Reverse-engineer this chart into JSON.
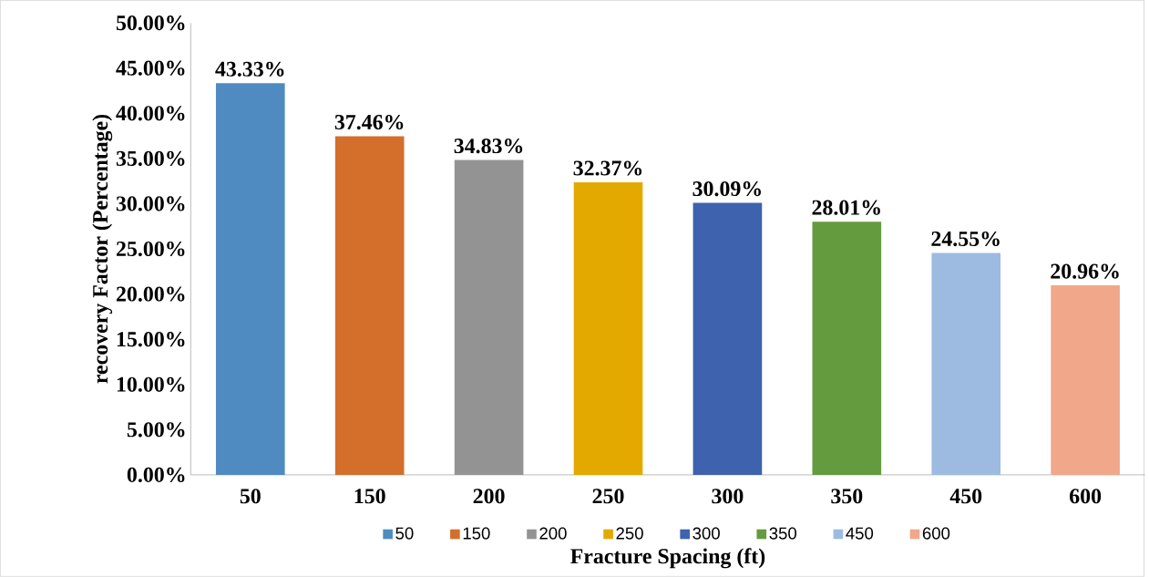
{
  "chart_data": {
    "type": "bar",
    "xlabel": "Fracture Spacing (ft)",
    "ylabel": "recovery Factor (Percentage)",
    "categories": [
      "50",
      "150",
      "200",
      "250",
      "300",
      "350",
      "450",
      "600"
    ],
    "series": [
      {
        "name": "50",
        "color": "#4f8bc0",
        "values": [
          43.33,
          null,
          null,
          null,
          null,
          null,
          null,
          null
        ],
        "value_labels": [
          "43.33%",
          null,
          null,
          null,
          null,
          null,
          null,
          null
        ]
      },
      {
        "name": "150",
        "color": "#d36f2b",
        "values": [
          null,
          37.46,
          null,
          null,
          null,
          null,
          null,
          null
        ],
        "value_labels": [
          null,
          "37.46%",
          null,
          null,
          null,
          null,
          null,
          null
        ]
      },
      {
        "name": "200",
        "color": "#939393",
        "values": [
          null,
          null,
          34.83,
          null,
          null,
          null,
          null,
          null
        ],
        "value_labels": [
          null,
          null,
          "34.83%",
          null,
          null,
          null,
          null,
          null
        ]
      },
      {
        "name": "250",
        "color": "#e3a900",
        "values": [
          null,
          null,
          null,
          32.37,
          null,
          null,
          null,
          null
        ],
        "value_labels": [
          null,
          null,
          null,
          "32.37%",
          null,
          null,
          null,
          null
        ]
      },
      {
        "name": "300",
        "color": "#3e62ad",
        "values": [
          null,
          null,
          null,
          null,
          30.09,
          null,
          null,
          null
        ],
        "value_labels": [
          null,
          null,
          null,
          null,
          "30.09%",
          null,
          null,
          null
        ]
      },
      {
        "name": "350",
        "color": "#659b3f",
        "values": [
          null,
          null,
          null,
          null,
          null,
          28.01,
          null,
          null
        ],
        "value_labels": [
          null,
          null,
          null,
          null,
          null,
          "28.01%",
          null,
          null
        ]
      },
      {
        "name": "450",
        "color": "#9dbbe1",
        "values": [
          null,
          null,
          null,
          null,
          null,
          null,
          24.55,
          null
        ],
        "value_labels": [
          null,
          null,
          null,
          null,
          null,
          null,
          "24.55%",
          null
        ]
      },
      {
        "name": "600",
        "color": "#f1a789",
        "values": [
          null,
          null,
          null,
          null,
          null,
          null,
          null,
          20.96
        ],
        "value_labels": [
          null,
          null,
          null,
          null,
          null,
          null,
          null,
          "20.96%"
        ]
      }
    ],
    "ylim": [
      0,
      50
    ],
    "yticks": [
      {
        "value": 0,
        "label": "0.00%"
      },
      {
        "value": 5,
        "label": "5.00%"
      },
      {
        "value": 10,
        "label": "10.00%"
      },
      {
        "value": 15,
        "label": "15.00%"
      },
      {
        "value": 20,
        "label": "20.00%"
      },
      {
        "value": 25,
        "label": "25.00%"
      },
      {
        "value": 30,
        "label": "30.00%"
      },
      {
        "value": 35,
        "label": "35.00%"
      },
      {
        "value": 40,
        "label": "40.00%"
      },
      {
        "value": 45,
        "label": "45.00%"
      },
      {
        "value": 50,
        "label": "50.00%"
      }
    ],
    "legend": "bottom",
    "grid": false
  }
}
